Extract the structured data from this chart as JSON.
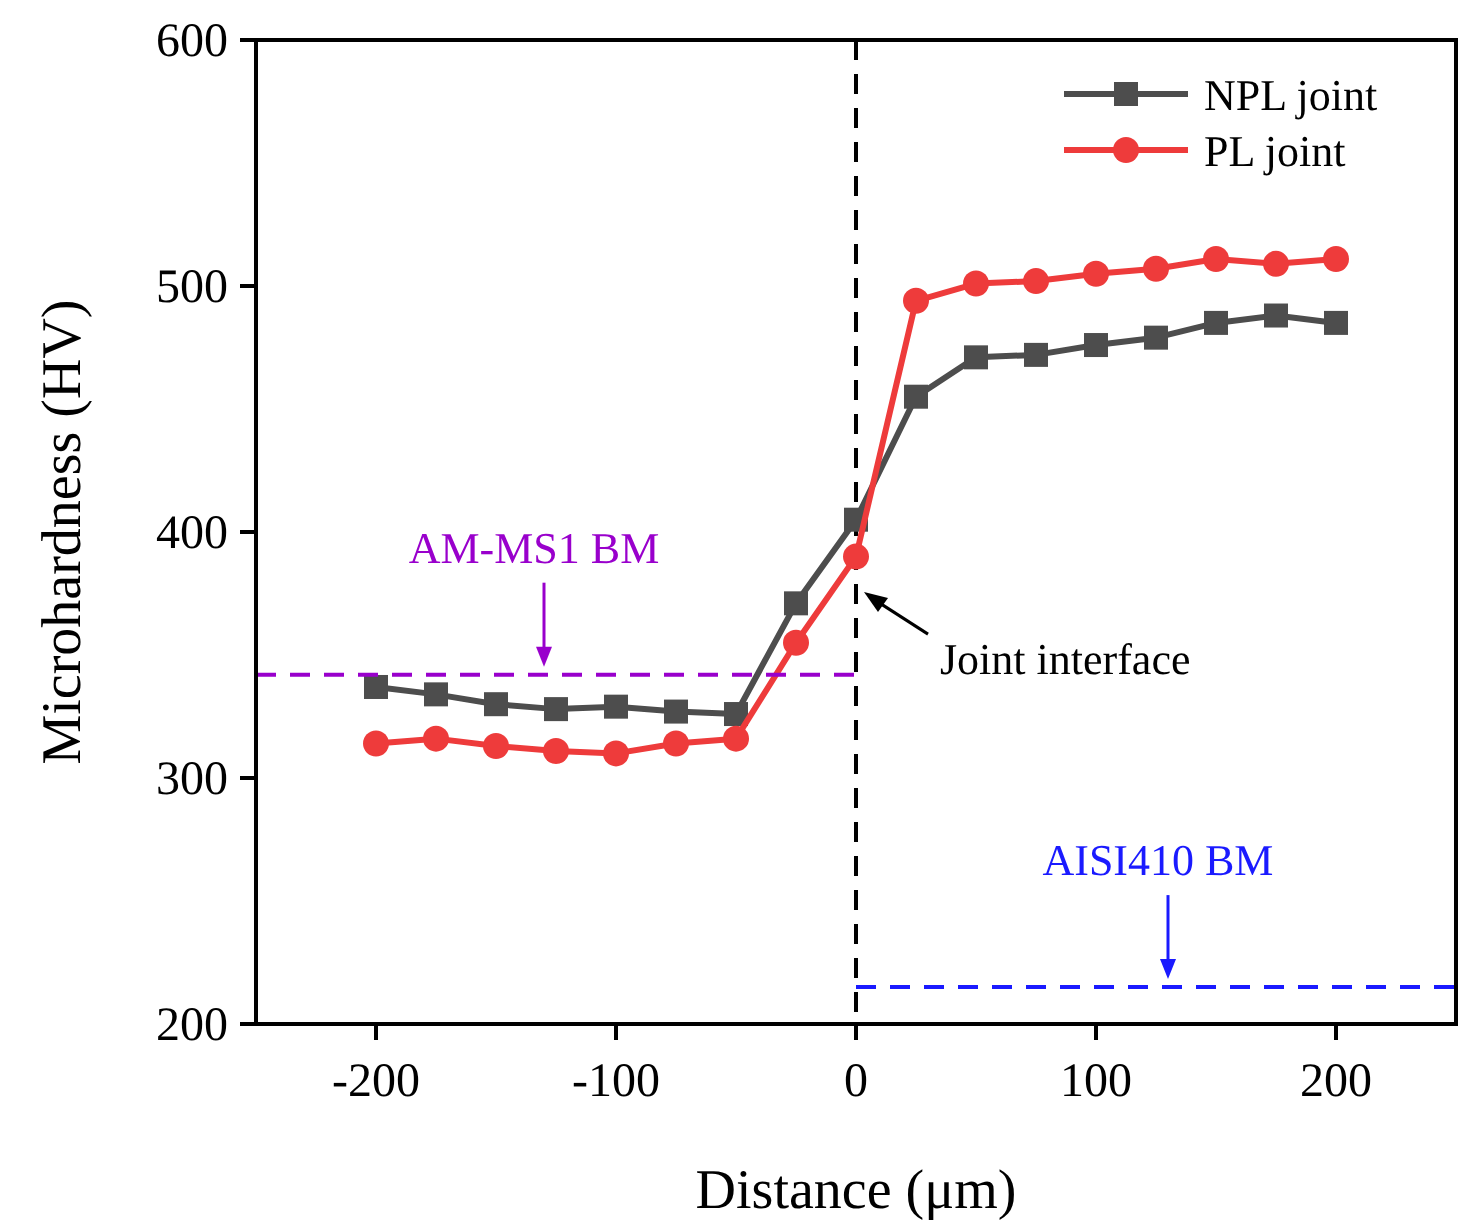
{
  "chart_data": {
    "type": "line",
    "xlabel": "Distance (μm)",
    "ylabel": "Microhardness (HV)",
    "x": [
      -200,
      -175,
      -150,
      -125,
      -100,
      -75,
      -50,
      -25,
      0,
      25,
      50,
      75,
      100,
      125,
      150,
      175,
      200
    ],
    "xlim": [
      -250,
      250
    ],
    "xticks": [
      -200,
      -100,
      0,
      100,
      200
    ],
    "ylim": [
      200,
      600
    ],
    "yticks": [
      200,
      300,
      400,
      500,
      600
    ],
    "series": [
      {
        "name": "NPL joint",
        "color": "#4d4d4d",
        "marker": "square",
        "values": [
          337,
          334,
          330,
          328,
          329,
          327,
          326,
          371,
          405,
          455,
          471,
          472,
          476,
          479,
          485,
          488,
          485
        ]
      },
      {
        "name": "PL joint",
        "color": "#ee3b3b",
        "marker": "circle",
        "values": [
          314,
          316,
          313,
          311,
          310,
          314,
          316,
          355,
          390,
          494,
          501,
          502,
          505,
          507,
          511,
          509,
          511
        ]
      },
      {
        "color": "#9900cc",
        "marker": "none",
        "line_style": "dashed",
        "x": [
          -250,
          0
        ],
        "values": [
          342,
          342
        ]
      },
      {
        "color": "#1a1aff",
        "marker": "none",
        "line_style": "dashed",
        "x": [
          0,
          250
        ],
        "values": [
          215,
          215
        ]
      }
    ],
    "ref_lines": [
      {
        "axis": "x",
        "value": 0,
        "color": "#000000",
        "line_style": "dashed"
      }
    ],
    "annotations": [
      {
        "text": "AM-MS1 BM",
        "x": -130,
        "y": 342
      },
      {
        "text": "Joint interface",
        "x": 0,
        "y": 378
      },
      {
        "text": "AISI410 BM",
        "x": 130,
        "y": 215
      }
    ],
    "legend": "top right"
  }
}
